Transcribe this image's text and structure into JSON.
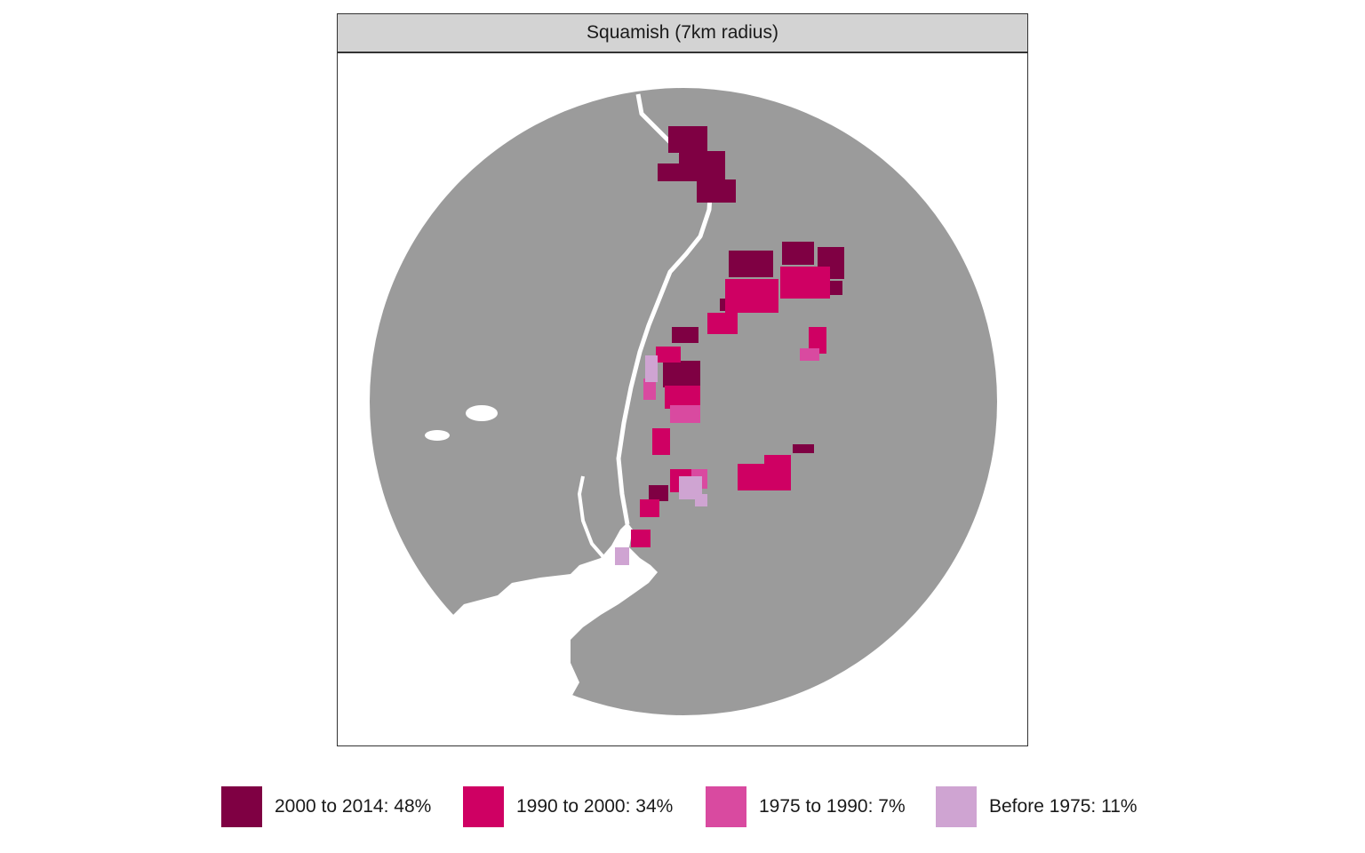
{
  "panel": {
    "title": "Squamish (7km radius)"
  },
  "colors": {
    "land": "#9b9b9b",
    "water": "#ffffff",
    "c2000": "#7f0043",
    "c1990": "#cf0063",
    "c1975": "#d94aa0",
    "cBefore": "#cfa4d2"
  },
  "legend": [
    {
      "label": "2000 to 2014: 48%",
      "color": "#7f0043",
      "icon": "swatch-2000-2014"
    },
    {
      "label": "1990 to 2000: 34%",
      "color": "#cf0063",
      "icon": "swatch-1990-2000"
    },
    {
      "label": "1975 to 1990: 7%",
      "color": "#d94aa0",
      "icon": "swatch-1975-1990"
    },
    {
      "label": "Before 1975: 11%",
      "color": "#cfa4d2",
      "icon": "swatch-before-1975"
    }
  ]
}
